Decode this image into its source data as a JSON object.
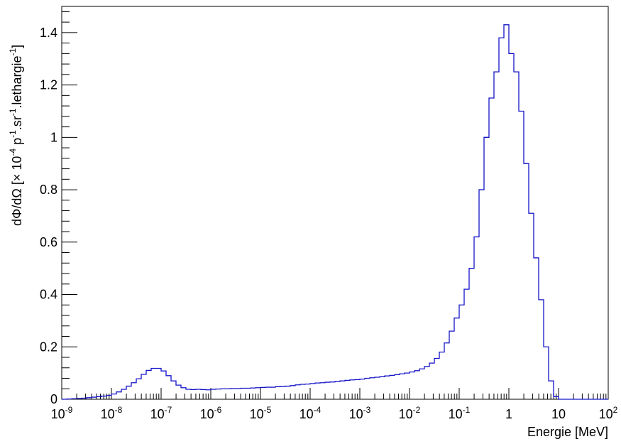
{
  "chart_data": {
    "type": "histogram",
    "xlabel": "Energie [MeV]",
    "ylabel": {
      "main": "dΦ/dΩ [× 10",
      "exp1": "-4",
      "p": " p",
      "exp2": "-1",
      "sr": ".sr",
      "exp3": "-1",
      "leth": ".lethargie",
      "exp4": "-1",
      "close": "]"
    },
    "x_scale": "log",
    "xlim_exp": [
      -9,
      2
    ],
    "ylim": [
      0,
      1.5
    ],
    "x_ticks": [
      {
        "base": "10",
        "exp": "-9"
      },
      {
        "base": "10",
        "exp": "-8"
      },
      {
        "base": "10",
        "exp": "-7"
      },
      {
        "base": "10",
        "exp": "-6"
      },
      {
        "base": "10",
        "exp": "-5"
      },
      {
        "base": "10",
        "exp": "-4"
      },
      {
        "base": "10",
        "exp": "-3"
      },
      {
        "base": "10",
        "exp": "-2"
      },
      {
        "base": "10",
        "exp": "-1"
      },
      {
        "base": "1",
        "exp": ""
      },
      {
        "base": "10",
        "exp": ""
      },
      {
        "base": "10",
        "exp": "2"
      }
    ],
    "y_ticks": [
      "0",
      "0.2",
      "0.4",
      "0.6",
      "0.8",
      "1",
      "1.2",
      "1.4"
    ],
    "y_tick_values": [
      0,
      0.2,
      0.4,
      0.6,
      0.8,
      1.0,
      1.2,
      1.4
    ],
    "bins_per_decade": 10,
    "first_bin_exp": -9,
    "values": [
      0.0,
      0.001,
      0.002,
      0.003,
      0.004,
      0.006,
      0.008,
      0.01,
      0.012,
      0.015,
      0.02,
      0.028,
      0.038,
      0.05,
      0.063,
      0.078,
      0.095,
      0.11,
      0.118,
      0.118,
      0.108,
      0.09,
      0.07,
      0.054,
      0.044,
      0.038,
      0.037,
      0.038,
      0.037,
      0.036,
      0.038,
      0.039,
      0.04,
      0.04,
      0.041,
      0.041,
      0.042,
      0.042,
      0.043,
      0.044,
      0.045,
      0.046,
      0.046,
      0.048,
      0.049,
      0.05,
      0.052,
      0.055,
      0.057,
      0.058,
      0.06,
      0.062,
      0.063,
      0.065,
      0.066,
      0.068,
      0.07,
      0.072,
      0.074,
      0.075,
      0.077,
      0.08,
      0.082,
      0.084,
      0.086,
      0.089,
      0.091,
      0.094,
      0.097,
      0.1,
      0.104,
      0.109,
      0.116,
      0.125,
      0.138,
      0.156,
      0.18,
      0.215,
      0.26,
      0.31,
      0.36,
      0.42,
      0.5,
      0.62,
      0.8,
      1.0,
      1.15,
      1.25,
      1.38,
      1.43,
      1.32,
      1.25,
      1.1,
      0.9,
      0.71,
      0.54,
      0.38,
      0.2,
      0.07,
      0.01,
      0.0,
      0.0,
      0.0,
      0.0,
      0.0,
      0.0,
      0.0,
      0.0,
      0.0,
      0.0
    ],
    "line_color": "#1414c8",
    "grid": false
  }
}
